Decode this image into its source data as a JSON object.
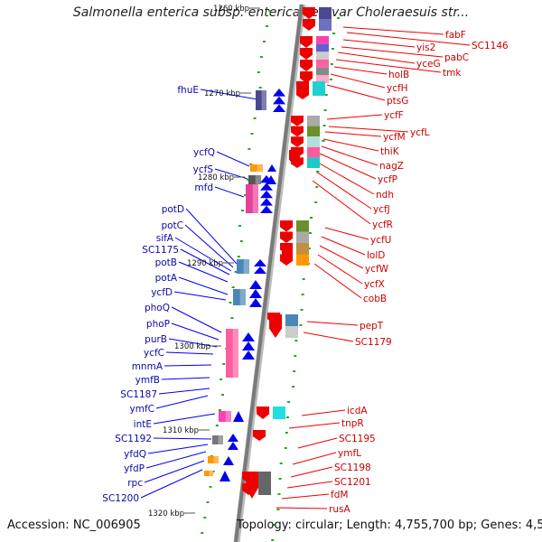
{
  "title": "Salmonella enterica subsp. enterica serovar Choleraesuis str...",
  "accession": "Accession: NC_006905",
  "topology": "Topology: circular; Length: 4,755,700 bp; Genes: 4,516",
  "colors": {
    "forward": "#0000ee",
    "reverse": "#ee0000",
    "backbone": "#777777",
    "tick": "#22aa22"
  },
  "kbp_labels": [
    "1260 kbp",
    "1270 kbp",
    "1280 kbp",
    "1290 kbp",
    "1300 kbp",
    "1310 kbp",
    "1320 kbp"
  ],
  "left_genes": [
    "fhuE",
    "ycfQ",
    "ycfS",
    "mfd",
    "potD",
    "potC",
    "sifA",
    "SC1175",
    "potB",
    "potA",
    "ycfD",
    "phoQ",
    "phoP",
    "purB",
    "ycfC",
    "mnmA",
    "ymfB",
    "SC1187",
    "ymfC",
    "intE",
    "SC1192",
    "yfdQ",
    "yfdP",
    "rpc",
    "SC1200"
  ],
  "right_genes": [
    "fabF",
    "SC1146",
    "yis2",
    "pabC",
    "yceG",
    "tmk",
    "holB",
    "ycfH",
    "ptsG",
    "ycfF",
    "ycfL",
    "ycfM",
    "thiK",
    "nagZ",
    "ycfP",
    "ndh",
    "ycfJ",
    "ycfR",
    "ycfU",
    "lolD",
    "ycfW",
    "ycfX",
    "cobB",
    "pepT",
    "SC1179",
    "icdA",
    "tnpR",
    "SC1195",
    "ymfL",
    "SC1198",
    "SC1201",
    "fdM",
    "rusA"
  ]
}
